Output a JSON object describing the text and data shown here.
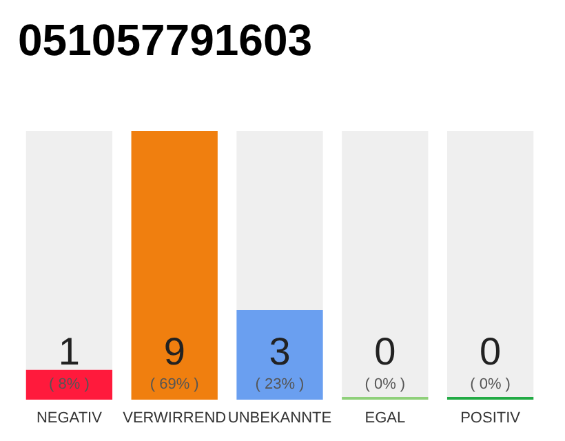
{
  "chart_data": {
    "type": "bar",
    "title": "051057791603",
    "stacked": true,
    "categories": [
      "NEGATIV",
      "VERWIRREND",
      "UNBEKANNTE",
      "EGAL",
      "POSITIV"
    ],
    "series": [
      {
        "colors": [
          "#ff1a3c",
          "#f07f0f",
          "#6a9ff0",
          "#8fd07a",
          "#22aa44"
        ],
        "values": [
          1,
          9,
          3,
          0,
          0
        ],
        "value_labels": [
          "1\n( 8% )",
          "9\n( 69% )",
          "3\n( 23% )",
          "0\n( 0% )",
          "0\n( 0% )"
        ]
      },
      {
        "color": "#efefef",
        "values": [
          8,
          0,
          6,
          9,
          9
        ]
      }
    ],
    "tick_labels": "x"
  }
}
